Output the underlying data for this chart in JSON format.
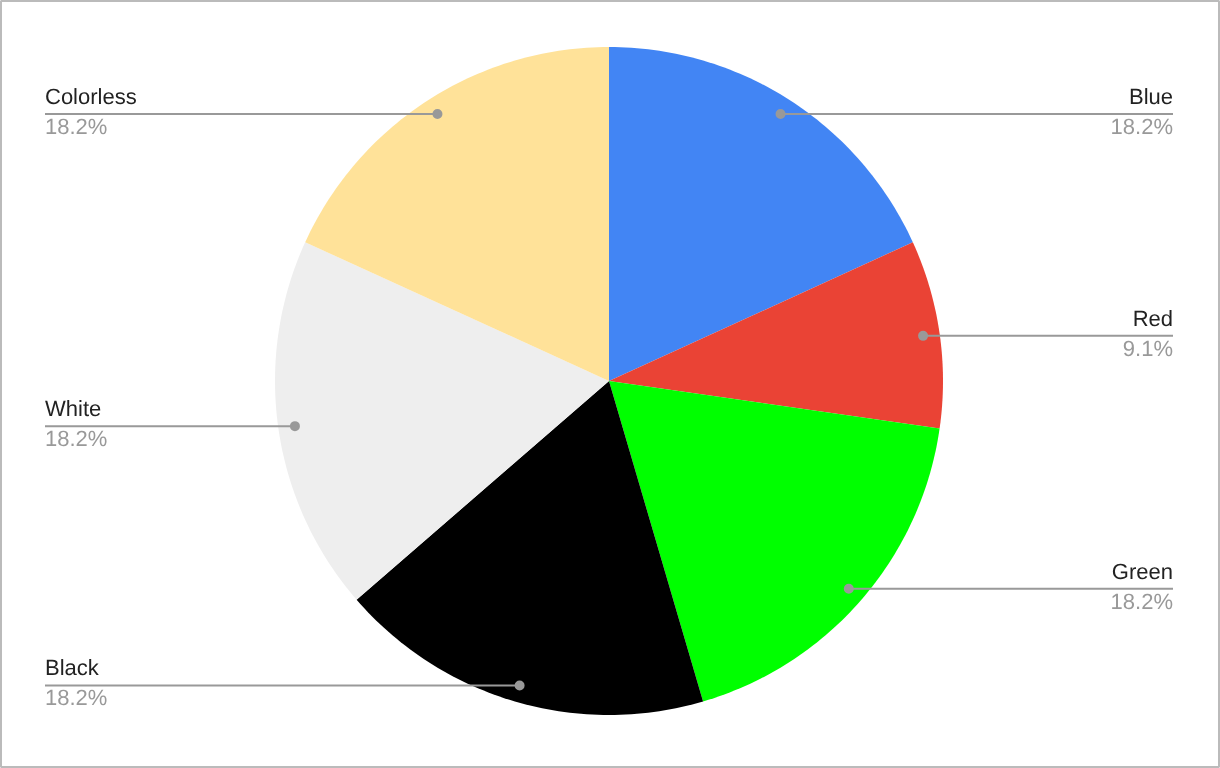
{
  "chart_data": {
    "type": "pie",
    "categories": [
      "Blue",
      "Red",
      "Green",
      "Black",
      "White",
      "Colorless"
    ],
    "values": [
      18.2,
      9.1,
      18.2,
      18.2,
      18.2,
      18.2
    ],
    "value_labels": [
      "18.2%",
      "9.1%",
      "18.2%",
      "18.2%",
      "18.2%",
      "18.2%"
    ],
    "colors": [
      "#4285f4",
      "#ea4335",
      "#00ff00",
      "#000000",
      "#eeeeee",
      "#ffe299"
    ]
  }
}
